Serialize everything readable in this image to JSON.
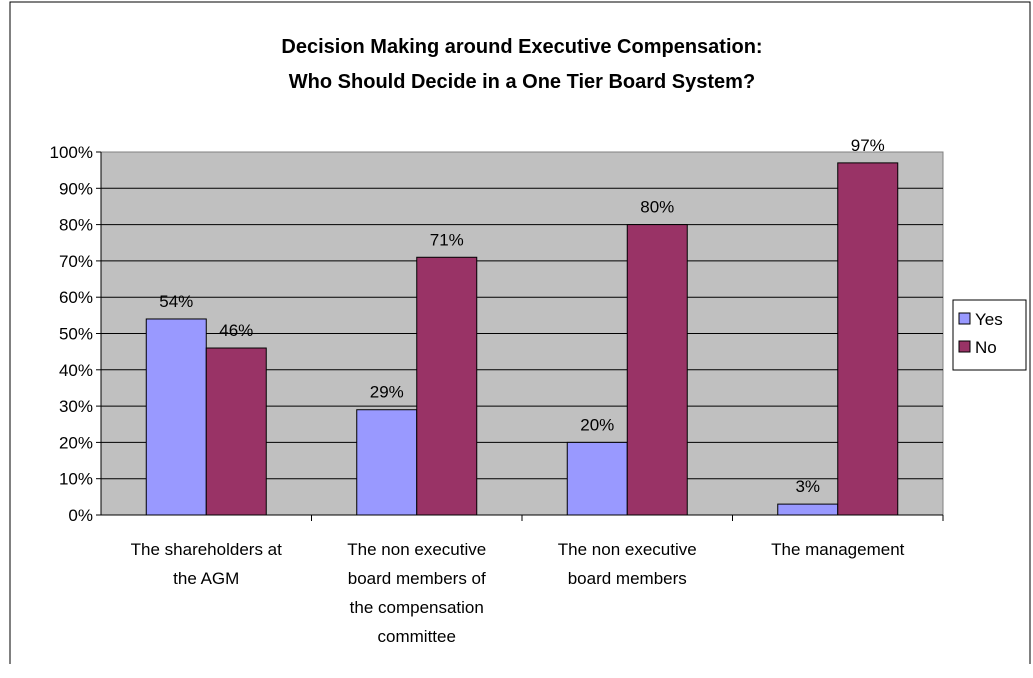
{
  "chart_data": {
    "type": "bar",
    "title_lines": [
      "Decision Making around Executive Compensation:",
      "Who Should Decide in a One Tier Board System?"
    ],
    "categories": [
      [
        "The shareholders at",
        "the AGM"
      ],
      [
        "The non executive",
        "board members of",
        "the compensation",
        "committee"
      ],
      [
        "The non executive",
        "board members"
      ],
      [
        "The management"
      ]
    ],
    "series": [
      {
        "name": "Yes",
        "color": "#9999ff",
        "values": [
          54,
          29,
          20,
          3
        ],
        "labels": [
          "54%",
          "29%",
          "20%",
          "3%"
        ]
      },
      {
        "name": "No",
        "color": "#993366",
        "values": [
          46,
          71,
          80,
          97
        ],
        "labels": [
          "46%",
          "71%",
          "80%",
          "97%"
        ]
      }
    ],
    "yticks": [
      "0%",
      "10%",
      "20%",
      "30%",
      "40%",
      "50%",
      "60%",
      "70%",
      "80%",
      "90%",
      "100%"
    ],
    "ylim": [
      0,
      100
    ],
    "grid": true,
    "plot_background": "#c0c0c0",
    "legend_position": "right"
  }
}
